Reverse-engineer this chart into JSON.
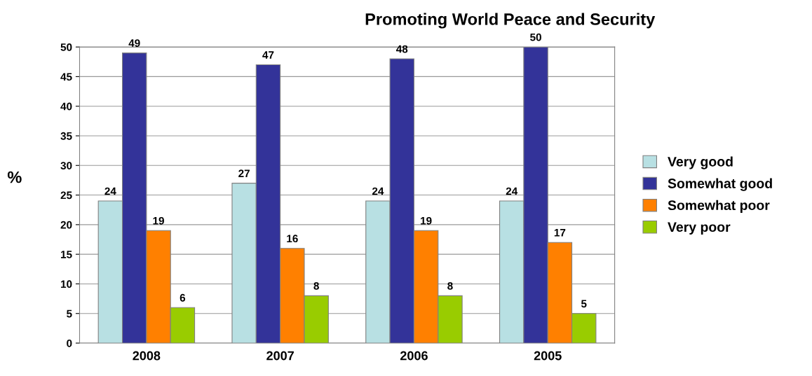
{
  "chart_data": {
    "type": "bar",
    "title": "Promoting World Peace and Security",
    "ylabel": "%",
    "categories": [
      "2008",
      "2007",
      "2006",
      "2005"
    ],
    "series": [
      {
        "name": "Very good",
        "color": "#b8e0e3",
        "values": [
          24,
          27,
          24,
          24
        ]
      },
      {
        "name": "Somewhat good",
        "color": "#333399",
        "values": [
          49,
          47,
          48,
          50
        ]
      },
      {
        "name": "Somewhat poor",
        "color": "#ff8000",
        "values": [
          19,
          16,
          19,
          17
        ]
      },
      {
        "name": "Very poor",
        "color": "#99cc00",
        "values": [
          6,
          8,
          8,
          5
        ]
      }
    ],
    "ylim": [
      0,
      50
    ],
    "yticks": [
      0,
      5,
      10,
      15,
      20,
      25,
      30,
      35,
      40,
      45,
      50
    ],
    "grid": "y",
    "legend": "right",
    "data_labels": true
  }
}
